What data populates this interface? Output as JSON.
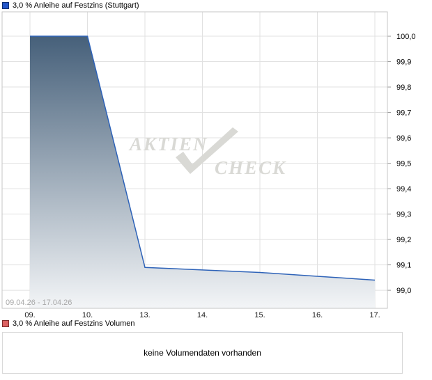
{
  "price_legend": {
    "label": "3,0 % Anleihe auf Festzins (Stuttgart)",
    "swatch_fill": "#2456c9",
    "swatch_border": "#0e2f70"
  },
  "volume_legend": {
    "label": "3,0 % Anleihe auf Festzins Volumen",
    "swatch_fill": "#dc6262",
    "swatch_border": "#7d2b2b"
  },
  "volume_message": "keine Volumendaten vorhanden",
  "watermark": {
    "word1": "AKTIEN",
    "word2": "CHECK",
    "color": "#d9d9d5"
  },
  "chart_data": [
    {
      "type": "area",
      "title": "3,0 % Anleihe auf Festzins (Stuttgart)",
      "categories": [
        "09.",
        "10.",
        "13.",
        "14.",
        "15.",
        "16.",
        "17."
      ],
      "values": [
        100.0,
        100.0,
        99.09,
        99.08,
        99.07,
        99.055,
        99.04
      ],
      "xlabel": "",
      "ylabel": "",
      "ylim": [
        98.929,
        100.096
      ],
      "yticks": [
        99.0,
        99.1,
        99.2,
        99.3,
        99.4,
        99.5,
        99.6,
        99.7,
        99.8,
        99.9,
        100.0
      ],
      "ytick_labels": [
        "99,0",
        "99,1",
        "99,2",
        "99,3",
        "99,4",
        "99,5",
        "99,6",
        "99,7",
        "99,8",
        "99,9",
        "100,0"
      ],
      "date_range": "09.04.26 - 17.04.26",
      "grid": true,
      "grid_color": "#e1e1e1",
      "line_color": "#2d62b8",
      "area_gradient_top": "#46607a",
      "area_gradient_bottom": "#f3f5f7",
      "legend_position": "top-left",
      "y_axis_side": "right"
    },
    {
      "type": "bar",
      "title": "3,0 % Anleihe auf Festzins Volumen",
      "categories": [],
      "values": [],
      "note": "keine Volumendaten vorhanden"
    }
  ]
}
